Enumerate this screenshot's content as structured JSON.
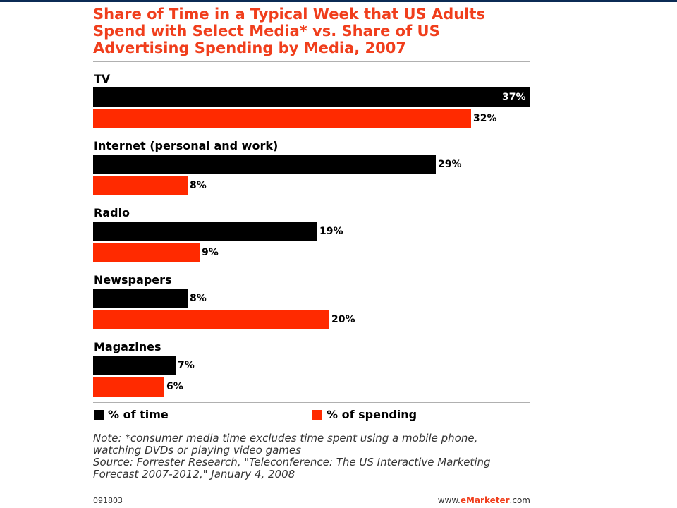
{
  "chart_data": {
    "type": "bar",
    "orientation": "horizontal",
    "title": "Share of Time in a Typical Week that US Adults Spend with Select Media* vs. Share of US Advertising Spending by Media, 2007",
    "categories": [
      "TV",
      "Internet (personal and work)",
      "Radio",
      "Newspapers",
      "Magazines"
    ],
    "series": [
      {
        "name": "% of time",
        "values": [
          37,
          29,
          19,
          8,
          7
        ],
        "color": "#000000"
      },
      {
        "name": "% of spending",
        "values": [
          32,
          8,
          9,
          20,
          6
        ],
        "color": "#ff2a00"
      }
    ],
    "value_labels": {
      "% of time": [
        "37%",
        "29%",
        "19%",
        "8%",
        "7%"
      ],
      "% of spending": [
        "32%",
        "8%",
        "9%",
        "20%",
        "6%"
      ]
    },
    "xlim": [
      0,
      37
    ],
    "grid": false,
    "legend_position": "bottom"
  },
  "legend": {
    "time": "% of time",
    "spending": "% of spending"
  },
  "note": {
    "line1": "Note: *consumer media time excludes time spent using a mobile phone,",
    "line2": "watching DVDs or playing video games",
    "line3": "Source: Forrester Research, \"Teleconference: The US Interactive Marketing",
    "line4": "Forecast 2007-2012,\" January 4, 2008"
  },
  "footer": {
    "chart_id": "091803",
    "brand_prefix": "www.",
    "brand_mark": "eMarketer",
    "brand_suffix": ".com"
  },
  "colors": {
    "title": "#f03e1c",
    "time": "#000000",
    "spending": "#ff2a00",
    "top_rule": "#0b2b55"
  }
}
